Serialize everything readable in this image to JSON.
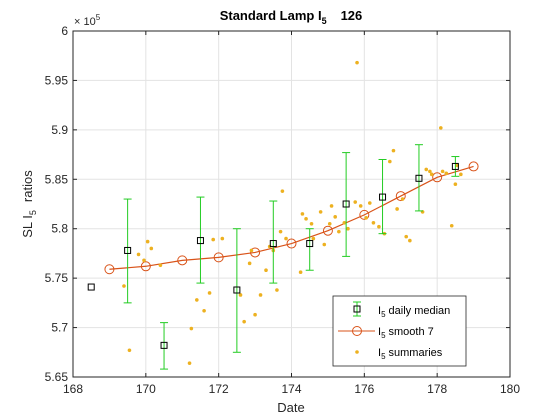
{
  "chart_data": {
    "type": "line",
    "title": {
      "main": "Standard Lamp I",
      "sub": "5",
      "suffix": "126"
    },
    "xlabel": "Date",
    "ylabel": {
      "main": "SL I",
      "sub": "5",
      "suffix": "ratios"
    },
    "exponent_label": {
      "base": "× 10",
      "power": "5"
    },
    "xlim": [
      168,
      180
    ],
    "ylim": [
      5.65,
      6.0
    ],
    "xticks": [
      168,
      170,
      172,
      174,
      176,
      178,
      180
    ],
    "yticks": [
      5.65,
      5.7,
      5.75,
      5.8,
      5.85,
      5.9,
      5.95,
      6.0
    ],
    "xtick_labels": [
      "168",
      "170",
      "172",
      "174",
      "176",
      "178",
      "180"
    ],
    "ytick_labels": [
      "5.65",
      "5.7",
      "5.75",
      "5.8",
      "5.85",
      "5.9",
      "5.95",
      "6"
    ],
    "grid": true,
    "legend_position": "bottom-right",
    "colors": {
      "median": "#000000",
      "errorbar": "#22cc22",
      "smooth": "#d95319",
      "summaries": "#edb120"
    },
    "series": [
      {
        "name": {
          "main": "I",
          "sub": "5",
          "suffix": "daily median"
        },
        "kind": "errorbar",
        "x": [
          168.5,
          169.5,
          170.5,
          171.5,
          172.5,
          173.5,
          174.5,
          175.5,
          176.5,
          177.5,
          178.5
        ],
        "y": [
          5.741,
          5.778,
          5.682,
          5.788,
          5.738,
          5.785,
          5.785,
          5.825,
          5.832,
          5.851,
          5.863
        ],
        "err_low": [
          5.741,
          5.725,
          5.658,
          5.745,
          5.675,
          5.745,
          5.758,
          5.772,
          5.795,
          5.818,
          5.853
        ],
        "err_high": [
          5.741,
          5.83,
          5.705,
          5.832,
          5.8,
          5.828,
          5.8,
          5.877,
          5.87,
          5.885,
          5.873
        ]
      },
      {
        "name": {
          "main": "I",
          "sub": "5",
          "suffix": "smooth 7"
        },
        "kind": "line",
        "x": [
          169,
          170,
          171,
          172,
          173,
          174,
          175,
          176,
          177,
          178,
          179
        ],
        "y": [
          5.759,
          5.762,
          5.768,
          5.771,
          5.776,
          5.785,
          5.798,
          5.814,
          5.833,
          5.852,
          5.863
        ]
      },
      {
        "name": {
          "main": "I",
          "sub": "5",
          "suffix": "summaries"
        },
        "kind": "scatter",
        "x": [
          169.4,
          169.55,
          169.8,
          169.95,
          170.05,
          170.15,
          170.4,
          171.2,
          171.25,
          171.4,
          171.6,
          171.75,
          171.85,
          172.1,
          172.6,
          172.7,
          172.85,
          172.9,
          173.0,
          173.15,
          173.3,
          173.4,
          173.5,
          173.6,
          173.7,
          173.75,
          173.85,
          174.25,
          174.3,
          174.4,
          174.55,
          174.6,
          174.8,
          174.9,
          175.05,
          175.1,
          175.2,
          175.3,
          175.45,
          175.55,
          175.75,
          175.8,
          175.9,
          176.05,
          176.15,
          176.25,
          176.4,
          176.55,
          176.7,
          176.8,
          176.9,
          177.05,
          177.15,
          177.25,
          177.6,
          177.7,
          177.8,
          177.85,
          178.1,
          178.15,
          178.25,
          178.4,
          178.5,
          178.55,
          178.65
        ],
        "y": [
          5.742,
          5.677,
          5.774,
          5.768,
          5.787,
          5.78,
          5.763,
          5.664,
          5.699,
          5.728,
          5.717,
          5.735,
          5.789,
          5.79,
          5.733,
          5.706,
          5.765,
          5.778,
          5.713,
          5.733,
          5.758,
          5.782,
          5.778,
          5.738,
          5.797,
          5.838,
          5.79,
          5.756,
          5.815,
          5.81,
          5.805,
          5.79,
          5.817,
          5.784,
          5.805,
          5.823,
          5.812,
          5.797,
          5.806,
          5.8,
          5.827,
          5.968,
          5.823,
          5.811,
          5.826,
          5.806,
          5.802,
          5.795,
          5.868,
          5.879,
          5.82,
          5.83,
          5.792,
          5.788,
          5.817,
          5.86,
          5.858,
          5.855,
          5.902,
          5.858,
          5.856,
          5.803,
          5.845,
          5.864,
          5.855
        ]
      }
    ]
  }
}
